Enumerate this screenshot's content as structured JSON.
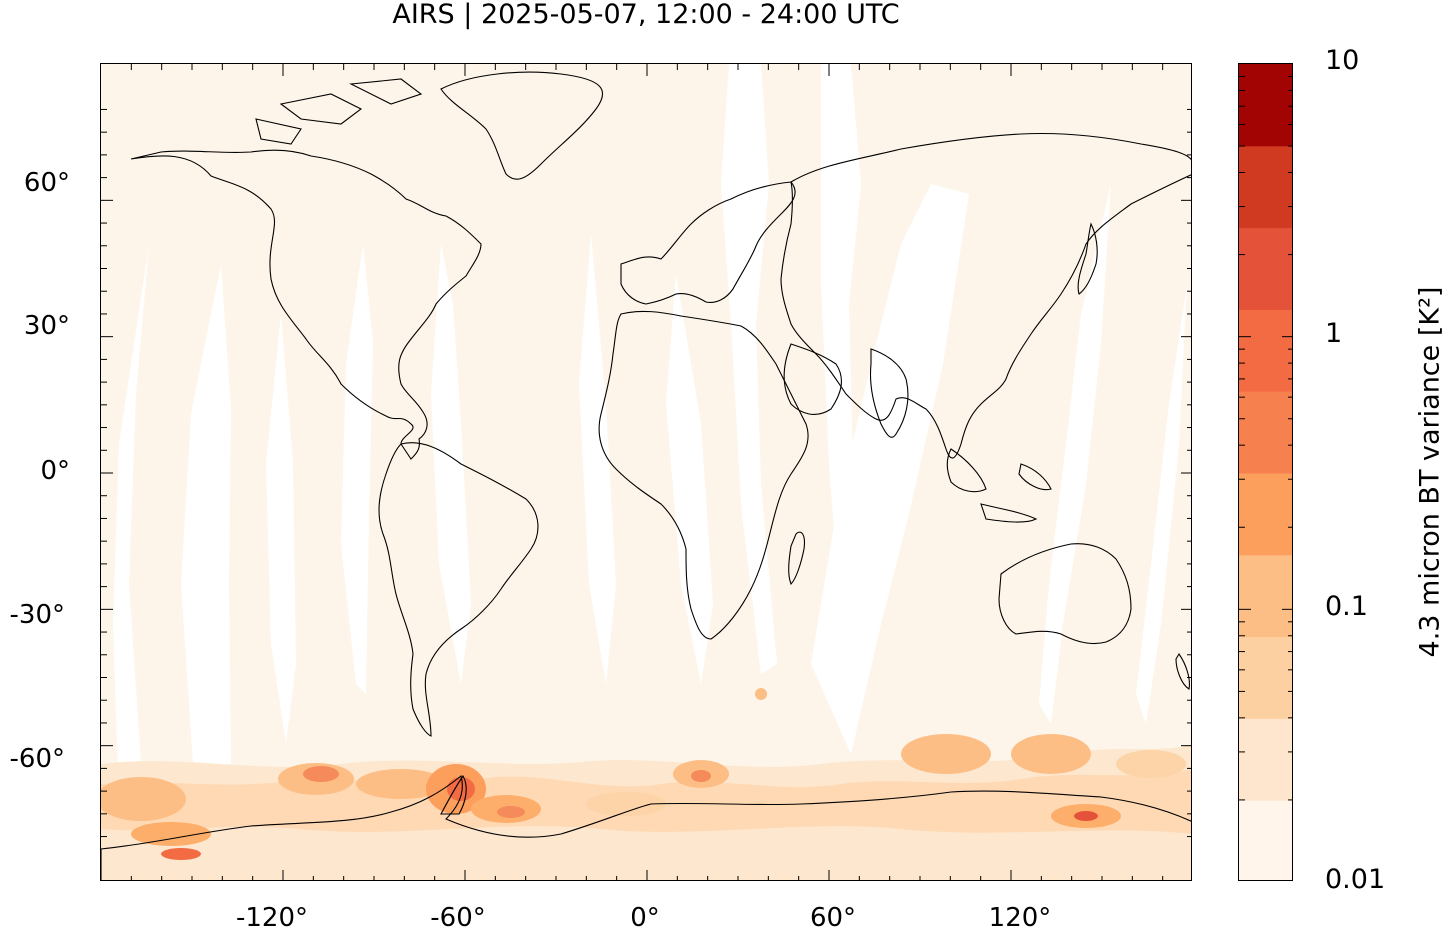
{
  "title": "AIRS | 2025-05-07, 12:00 - 24:00 UTC",
  "map": {
    "projection": "plate carrée (equirectangular)",
    "lon_range": [
      -180,
      180
    ],
    "lat_range": [
      -90,
      90
    ],
    "y_ticks": [
      {
        "value": 60,
        "label": "60°"
      },
      {
        "value": 30,
        "label": "30°"
      },
      {
        "value": 0,
        "label": "0°"
      },
      {
        "value": -30,
        "label": "-30°"
      },
      {
        "value": -60,
        "label": "-60°"
      }
    ],
    "x_ticks": [
      {
        "value": -120,
        "label": "-120°"
      },
      {
        "value": -60,
        "label": "-60°"
      },
      {
        "value": 0,
        "label": "0°"
      },
      {
        "value": 60,
        "label": "60°"
      },
      {
        "value": 120,
        "label": "120°"
      }
    ],
    "background_color": "#fdf5ea",
    "coastline_color": "#000000"
  },
  "colorbar": {
    "label": "4.3 micron BT variance [K²]",
    "scale": "log",
    "range": [
      0.01,
      10
    ],
    "tick_labels": [
      {
        "value": 10,
        "label": "10"
      },
      {
        "value": 1,
        "label": "1"
      },
      {
        "value": 0.1,
        "label": "0.1"
      },
      {
        "value": 0.01,
        "label": "0.01"
      }
    ],
    "colors": [
      "#fff5eb",
      "#fee6ce",
      "#fdd0a2",
      "#fdbe85",
      "#fd9f5c",
      "#f7804f",
      "#f26b43",
      "#e35239",
      "#d03a20",
      "#a20404"
    ]
  }
}
